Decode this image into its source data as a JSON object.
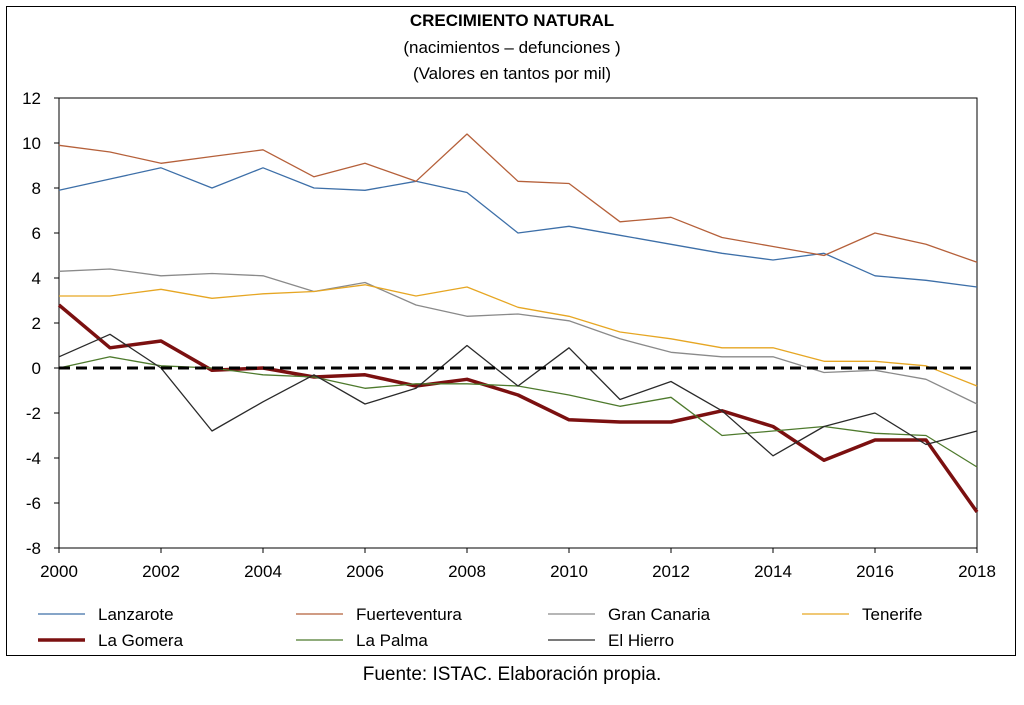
{
  "chart_data": {
    "type": "line",
    "title": "CRECIMIENTO NATURAL",
    "subtitle_lines": [
      "(nacimientos – defunciones )",
      "(Valores en tantos por mil)"
    ],
    "x": [
      2000,
      2001,
      2002,
      2003,
      2004,
      2005,
      2006,
      2007,
      2008,
      2009,
      2010,
      2011,
      2012,
      2013,
      2014,
      2015,
      2016,
      2017,
      2018
    ],
    "xlim": [
      2000,
      2018
    ],
    "x_ticks": [
      "2000",
      "2002",
      "2004",
      "2006",
      "2008",
      "2010",
      "2012",
      "2014",
      "2016",
      "2018"
    ],
    "ylim": [
      -8,
      12
    ],
    "y_ticks": [
      "12",
      "10",
      "8",
      "6",
      "4",
      "2",
      "0",
      "-2",
      "-4",
      "-6",
      "-8"
    ],
    "reference_line": {
      "y": 0,
      "style": "dashed",
      "color": "#000000"
    },
    "legend_position": "bottom",
    "series": [
      {
        "name": "Lanzarote",
        "color": "#3d6fa8",
        "width": 1.3,
        "values": [
          7.9,
          8.4,
          8.9,
          8.0,
          8.9,
          8.0,
          7.9,
          8.3,
          7.8,
          6.0,
          6.3,
          5.9,
          5.5,
          5.1,
          4.8,
          5.1,
          4.1,
          3.9,
          3.6
        ]
      },
      {
        "name": "Fuerteventura",
        "color": "#b5603a",
        "width": 1.3,
        "values": [
          9.9,
          9.6,
          9.1,
          9.4,
          9.7,
          8.5,
          9.1,
          8.3,
          10.4,
          8.3,
          8.2,
          6.5,
          6.7,
          5.8,
          5.4,
          5.0,
          6.0,
          5.5,
          4.7
        ]
      },
      {
        "name": "Gran Canaria",
        "color": "#8a8a8a",
        "width": 1.3,
        "values": [
          4.3,
          4.4,
          4.1,
          4.2,
          4.1,
          3.4,
          3.8,
          2.8,
          2.3,
          2.4,
          2.1,
          1.3,
          0.7,
          0.5,
          0.5,
          -0.2,
          -0.1,
          -0.5,
          -1.6
        ]
      },
      {
        "name": "Tenerife",
        "color": "#e6a623",
        "width": 1.3,
        "values": [
          3.2,
          3.2,
          3.5,
          3.1,
          3.3,
          3.4,
          3.7,
          3.2,
          3.6,
          2.7,
          2.3,
          1.6,
          1.3,
          0.9,
          0.9,
          0.3,
          0.3,
          0.1,
          -0.8
        ]
      },
      {
        "name": "La Gomera",
        "color": "#7b1010",
        "width": 3.5,
        "values": [
          2.8,
          0.9,
          1.2,
          -0.1,
          0.0,
          -0.4,
          -0.3,
          -0.8,
          -0.5,
          -1.2,
          -2.3,
          -2.4,
          -2.4,
          -1.9,
          -2.6,
          -4.1,
          -3.2,
          -3.2,
          -6.4
        ]
      },
      {
        "name": "La Palma",
        "color": "#4e7a2d",
        "width": 1.3,
        "values": [
          0.0,
          0.5,
          0.1,
          0.0,
          -0.3,
          -0.4,
          -0.9,
          -0.7,
          -0.7,
          -0.8,
          -1.2,
          -1.7,
          -1.3,
          -3.0,
          -2.8,
          -2.6,
          -2.9,
          -3.0,
          -4.4
        ]
      },
      {
        "name": "El Hierro",
        "color": "#2a2a2a",
        "width": 1.3,
        "values": [
          0.5,
          1.5,
          0.0,
          -2.8,
          -1.5,
          -0.3,
          -1.6,
          -0.9,
          1.0,
          -0.8,
          0.9,
          -1.4,
          -0.6,
          -1.9,
          -3.9,
          -2.6,
          -2.0,
          -3.4,
          -2.8
        ]
      }
    ]
  },
  "source_note": "Fuente: ISTAC. Elaboración propia."
}
